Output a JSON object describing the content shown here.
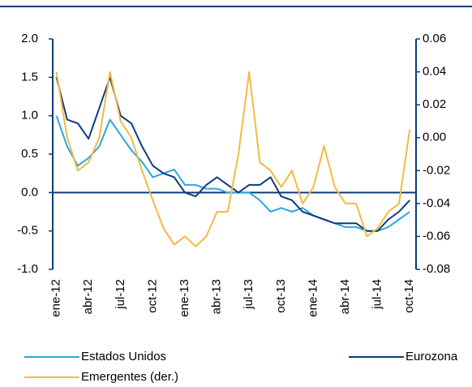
{
  "chart_data": {
    "type": "line",
    "categories": [
      "ene-12",
      null,
      null,
      "abr-12",
      null,
      null,
      "jul-12",
      null,
      null,
      "oct-12",
      null,
      null,
      "ene-13",
      null,
      null,
      "abr-13",
      null,
      null,
      "jul-13",
      null,
      null,
      "oct-13",
      null,
      null,
      "ene-14",
      null,
      null,
      "abr-14",
      null,
      null,
      "jul-14",
      null,
      null,
      "oct-14"
    ],
    "series": [
      {
        "name": "Estados Unidos",
        "color": "#29a8e0",
        "values": [
          1.0,
          0.6,
          0.35,
          0.45,
          0.6,
          0.95,
          0.75,
          0.55,
          0.4,
          0.2,
          0.25,
          0.3,
          0.1,
          0.1,
          0.05,
          0.05,
          0.0,
          0.0,
          0.0,
          -0.1,
          -0.25,
          -0.2,
          -0.25,
          -0.2,
          -0.3,
          -0.35,
          -0.4,
          -0.45,
          -0.45,
          -0.5,
          -0.5,
          -0.45,
          -0.35,
          -0.25
        ]
      },
      {
        "name": "Eurozona",
        "color": "#0c3c7c",
        "values": [
          1.5,
          0.95,
          0.9,
          0.7,
          1.1,
          1.5,
          1.0,
          0.9,
          0.6,
          0.35,
          0.25,
          0.2,
          0.0,
          -0.05,
          0.1,
          0.2,
          0.1,
          0.0,
          0.1,
          0.1,
          0.2,
          -0.05,
          -0.1,
          -0.25,
          -0.3,
          -0.35,
          -0.4,
          -0.4,
          -0.4,
          -0.5,
          -0.5,
          -0.35,
          -0.25,
          -0.1
        ]
      },
      {
        "name": "Emergentes (der.)",
        "color": "#f5b942",
        "axis": "y2",
        "values": [
          0.04,
          0.0,
          -0.02,
          -0.015,
          0.0,
          0.04,
          0.01,
          0.0,
          -0.02,
          -0.038,
          -0.055,
          -0.065,
          -0.06,
          -0.066,
          -0.06,
          -0.045,
          -0.045,
          -0.01,
          0.04,
          -0.015,
          -0.02,
          -0.03,
          -0.02,
          -0.04,
          -0.03,
          -0.005,
          -0.03,
          -0.04,
          -0.04,
          -0.06,
          -0.055,
          -0.045,
          -0.04,
          0.005
        ]
      }
    ],
    "ylim": [
      -1.0,
      2.0
    ],
    "yticks": [
      {
        "value": -1.0,
        "label": "-1.0"
      },
      -0.5,
      {
        "value": 0,
        "label": "0.0"
      },
      0.5,
      {
        "value": 1.0,
        "label": "1.0"
      },
      1.5,
      {
        "value": 2.0,
        "label": "2.0"
      }
    ],
    "y2lim": [
      -0.08,
      0.06
    ],
    "y2ticks": [
      -0.08,
      -0.06,
      -0.04,
      -0.02,
      {
        "value": 0,
        "label": "0.00"
      },
      0.02,
      0.04,
      0.06
    ],
    "legend": "bottom"
  }
}
